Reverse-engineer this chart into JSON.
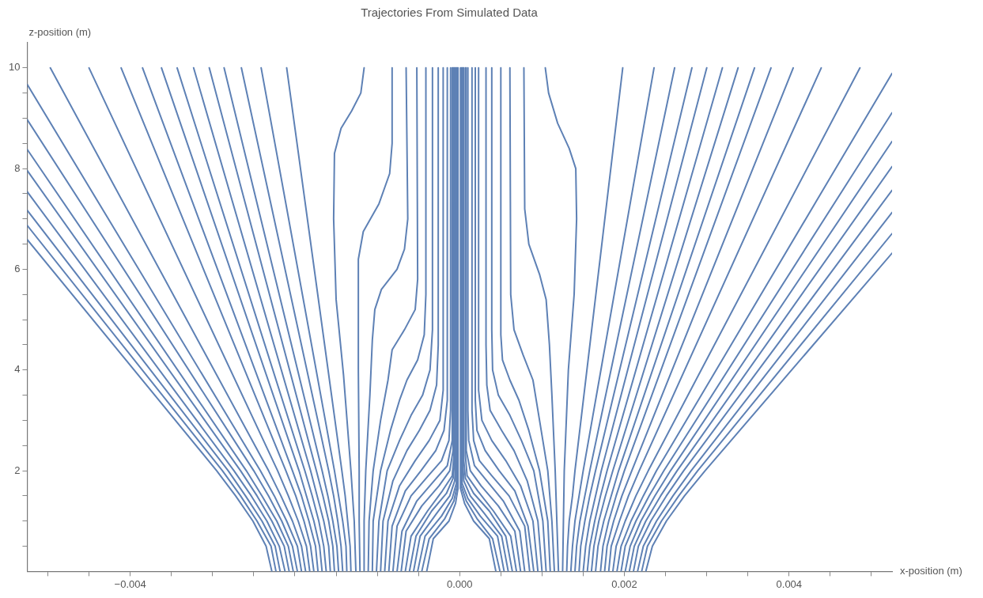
{
  "chart_data": {
    "type": "line",
    "title": "Trajectories From Simulated Data",
    "xlabel": "x-position (m)",
    "ylabel": "z-position (m)",
    "xlim": [
      -0.00525,
      0.00525
    ],
    "ylim": [
      0,
      10.5
    ],
    "xticks": [
      {
        "value": -0.005,
        "label": null
      },
      {
        "value": -0.0045,
        "label": null
      },
      {
        "value": -0.004,
        "label": "−0.004"
      },
      {
        "value": -0.0035,
        "label": null
      },
      {
        "value": -0.003,
        "label": null
      },
      {
        "value": -0.0025,
        "label": null
      },
      {
        "value": -0.002,
        "label": null
      },
      {
        "value": -0.0015,
        "label": null
      },
      {
        "value": -0.001,
        "label": null
      },
      {
        "value": -0.0005,
        "label": null
      },
      {
        "value": 0,
        "label": "0.000"
      },
      {
        "value": 0.0005,
        "label": null
      },
      {
        "value": 0.001,
        "label": null
      },
      {
        "value": 0.0015,
        "label": null
      },
      {
        "value": 0.002,
        "label": "0.002"
      },
      {
        "value": 0.0025,
        "label": null
      },
      {
        "value": 0.003,
        "label": null
      },
      {
        "value": 0.0035,
        "label": null
      },
      {
        "value": 0.004,
        "label": "0.004"
      },
      {
        "value": 0.0045,
        "label": null
      },
      {
        "value": 0.005,
        "label": null
      }
    ],
    "yticks": [
      {
        "value": 0.5,
        "label": null
      },
      {
        "value": 1,
        "label": null
      },
      {
        "value": 1.5,
        "label": null
      },
      2,
      {
        "value": 2.5,
        "label": null
      },
      {
        "value": 3,
        "label": null
      },
      {
        "value": 3.5,
        "label": null
      },
      4,
      {
        "value": 4.5,
        "label": null
      },
      {
        "value": 5,
        "label": null
      },
      {
        "value": 5.5,
        "label": null
      },
      6,
      {
        "value": 6.5,
        "label": null
      },
      {
        "value": 7,
        "label": null
      },
      {
        "value": 7.5,
        "label": null
      },
      8,
      {
        "value": 8.5,
        "label": null
      },
      {
        "value": 9,
        "label": null
      },
      {
        "value": 9.5,
        "label": null
      },
      10
    ],
    "grid": false,
    "legend": false,
    "marker": "none",
    "line_style": "solid",
    "series": [
      {
        "color": "#5e81b5",
        "x": [
          -0.00228,
          -0.00235,
          -0.00251,
          -0.00272,
          -0.00295,
          -0.00525
        ],
        "values": [
          0,
          0.5,
          1,
          1.5,
          2,
          6.59
        ]
      },
      {
        "color": "#5e81b5",
        "x": [
          -0.00223,
          -0.00229,
          -0.00246,
          -0.00266,
          -0.00288,
          -0.00525
        ],
        "values": [
          0,
          0.5,
          1,
          1.5,
          2,
          6.87
        ]
      },
      {
        "color": "#5e81b5",
        "x": [
          -0.00218,
          -0.00224,
          -0.0024,
          -0.0026,
          -0.00281,
          -0.00525
        ],
        "values": [
          0,
          0.5,
          1,
          1.5,
          2,
          7.17
        ]
      },
      {
        "color": "#5e81b5",
        "x": [
          -0.00212,
          -0.00219,
          -0.00234,
          -0.00253,
          -0.00274,
          -0.00525
        ],
        "values": [
          0,
          0.5,
          1,
          1.5,
          2,
          7.54
        ]
      },
      {
        "color": "#5e81b5",
        "x": [
          -0.00207,
          -0.00213,
          -0.00228,
          -0.00246,
          -0.00266,
          -0.00525
        ],
        "values": [
          0,
          0.5,
          1,
          1.5,
          2,
          7.96
        ]
      },
      {
        "color": "#5e81b5",
        "x": [
          -0.00202,
          -0.00208,
          -0.00222,
          -0.0024,
          -0.00259,
          -0.00525
        ],
        "values": [
          0,
          0.5,
          1,
          1.5,
          2,
          8.38
        ]
      },
      {
        "color": "#5e81b5",
        "x": [
          -0.00197,
          -0.00203,
          -0.00216,
          -0.00232,
          -0.0025,
          -0.00525
        ],
        "values": [
          0,
          0.5,
          1,
          1.5,
          2,
          8.97
        ]
      },
      {
        "color": "#5e81b5",
        "x": [
          -0.00192,
          -0.00197,
          -0.0021,
          -0.00225,
          -0.00242,
          -0.00525
        ],
        "values": [
          0,
          0.5,
          1,
          1.5,
          2,
          9.67
        ]
      },
      {
        "color": "#5e81b5",
        "x": [
          -0.00187,
          -0.00192,
          -0.00203,
          -0.00217,
          -0.00232,
          -0.00497
        ],
        "values": [
          0,
          0.5,
          1,
          1.5,
          2,
          10
        ]
      },
      {
        "color": "#5e81b5",
        "x": [
          -0.00182,
          -0.00186,
          -0.00196,
          -0.00208,
          -0.00221,
          -0.0045
        ],
        "values": [
          0,
          0.5,
          1,
          1.5,
          2,
          10
        ]
      },
      {
        "color": "#5e81b5",
        "x": [
          -0.00177,
          -0.00181,
          -0.00189,
          -0.00199,
          -0.00211,
          -0.00411
        ],
        "values": [
          0,
          0.5,
          1,
          1.5,
          2,
          10
        ]
      },
      {
        "color": "#5e81b5",
        "x": [
          -0.00172,
          -0.00175,
          -0.00183,
          -0.00192,
          -0.00203,
          -0.00385
        ],
        "values": [
          0,
          0.5,
          1,
          1.5,
          2,
          10
        ]
      },
      {
        "color": "#5e81b5",
        "x": [
          -0.00167,
          -0.0017,
          -0.00177,
          -0.00186,
          -0.00195,
          -0.00362
        ],
        "values": [
          0,
          0.5,
          1,
          1.5,
          2,
          10
        ]
      },
      {
        "color": "#5e81b5",
        "x": [
          -0.00162,
          -0.00165,
          -0.00171,
          -0.00179,
          -0.00188,
          -0.00343
        ],
        "values": [
          0,
          0.5,
          1,
          1.5,
          2,
          10
        ]
      },
      {
        "color": "#5e81b5",
        "x": [
          -0.00157,
          -0.00159,
          -0.00165,
          -0.00173,
          -0.00181,
          -0.00323
        ],
        "values": [
          0,
          0.5,
          1,
          1.5,
          2,
          10
        ]
      },
      {
        "color": "#5e81b5",
        "x": [
          -0.00152,
          -0.00154,
          -0.00159,
          -0.00166,
          -0.00174,
          -0.00304
        ],
        "values": [
          0,
          0.5,
          1,
          1.5,
          2,
          10
        ]
      },
      {
        "color": "#5e81b5",
        "x": [
          -0.00147,
          -0.00149,
          -0.00154,
          -0.0016,
          -0.00167,
          -0.00286
        ],
        "values": [
          0,
          0.5,
          1,
          1.5,
          2,
          10
        ]
      },
      {
        "color": "#5e81b5",
        "x": [
          -0.00142,
          -0.00144,
          -0.00148,
          -0.00153,
          -0.00159,
          -0.00265
        ],
        "values": [
          0,
          0.5,
          1,
          1.5,
          2,
          10
        ]
      },
      {
        "color": "#5e81b5",
        "x": [
          -0.00137,
          -0.00138,
          -0.00142,
          -0.00147,
          -0.00152,
          -0.00241
        ],
        "values": [
          0,
          0.5,
          1,
          1.5,
          2,
          10
        ]
      },
      {
        "color": "#5e81b5",
        "x": [
          -0.00132,
          -0.00133,
          -0.00136,
          -0.00139,
          -0.00143,
          -0.0021
        ],
        "values": [
          0,
          0.5,
          1,
          1.5,
          2,
          10
        ]
      },
      {
        "color": "#5e81b5",
        "x": [
          -0.00126,
          -0.00128,
          -0.00132,
          -0.00141,
          -0.0015,
          -0.00153,
          -0.00152,
          -0.00144,
          -0.00131,
          -0.0012,
          -0.00116
        ],
        "values": [
          0,
          1,
          2,
          3.9,
          5.4,
          7,
          8.3,
          8.8,
          9.15,
          9.5,
          10
        ]
      },
      {
        "color": "#5e81b5",
        "x": [
          -0.00121,
          -0.00122,
          -0.00122,
          -0.00123,
          -0.00123,
          -0.00117,
          -0.00098,
          -0.00085,
          -0.00082,
          -0.00082
        ],
        "values": [
          0,
          1,
          2,
          4,
          6.2,
          6.75,
          7.3,
          7.9,
          8.5,
          10
        ]
      },
      {
        "color": "#5e81b5",
        "x": [
          -0.00116,
          -0.00116,
          -0.00114,
          -0.00109,
          -0.00106,
          -0.00103,
          -0.00095,
          -0.00076,
          -0.00067,
          -0.00063,
          -0.00065
        ],
        "values": [
          0,
          1,
          2,
          3.5,
          4.6,
          5.2,
          5.6,
          6,
          6.4,
          7,
          10
        ]
      },
      {
        "color": "#5e81b5",
        "x": [
          -0.00111,
          -0.0011,
          -0.00105,
          -0.00096,
          -0.00087,
          -0.00082,
          -0.00067,
          -0.00054,
          -0.00051,
          -0.00052
        ],
        "values": [
          0,
          1,
          2,
          3,
          3.8,
          4.4,
          4.8,
          5.2,
          5.8,
          10
        ]
      },
      {
        "color": "#5e81b5",
        "x": [
          -0.00106,
          -0.00105,
          -0.00096,
          -0.00084,
          -0.00073,
          -0.00064,
          -0.00051,
          -0.00043,
          -0.00041,
          -0.00041
        ],
        "values": [
          0,
          1,
          2,
          2.8,
          3.4,
          3.8,
          4.2,
          4.7,
          5.5,
          10
        ]
      },
      {
        "color": "#5e81b5",
        "x": [
          -0.00101,
          -0.00098,
          -0.00088,
          -0.00073,
          -0.00059,
          -0.00045,
          -0.00036,
          -0.00033,
          -0.00033
        ],
        "values": [
          0,
          1,
          2,
          2.6,
          3.1,
          3.5,
          4,
          4.8,
          10
        ]
      },
      {
        "color": "#5e81b5",
        "x": [
          -0.00096,
          -0.00093,
          -0.00081,
          -0.00064,
          -0.00049,
          -0.00036,
          -0.00028,
          -0.00026,
          -0.00026
        ],
        "values": [
          0,
          1,
          1.8,
          2.4,
          2.8,
          3.2,
          3.7,
          4.5,
          10
        ]
      },
      {
        "color": "#5e81b5",
        "x": [
          -0.00091,
          -0.00087,
          -0.00073,
          -0.00054,
          -0.00037,
          -0.00024,
          -0.0002,
          -0.0002
        ],
        "values": [
          0,
          1,
          1.7,
          2.2,
          2.6,
          3,
          3.6,
          10
        ]
      },
      {
        "color": "#5e81b5",
        "x": [
          -0.00086,
          -0.00082,
          -0.00066,
          -0.00047,
          -0.00029,
          -0.00019,
          -0.00015,
          -0.00015
        ],
        "values": [
          0,
          0.9,
          1.6,
          2,
          2.4,
          2.8,
          3.4,
          10
        ]
      },
      {
        "color": "#5e81b5",
        "x": [
          -0.00081,
          -0.00076,
          -0.00059,
          -0.00038,
          -0.00022,
          -0.00013,
          -0.00011,
          -0.00011
        ],
        "values": [
          0,
          0.9,
          1.5,
          1.9,
          2.2,
          2.6,
          3.2,
          10
        ]
      },
      {
        "color": "#5e81b5",
        "x": [
          -0.00076,
          -0.0007,
          -0.00052,
          -0.00031,
          -0.00015,
          -9e-05,
          -9e-05
        ],
        "values": [
          0,
          0.8,
          1.4,
          1.8,
          2.1,
          2.6,
          10
        ]
      },
      {
        "color": "#5e81b5",
        "x": [
          -0.00071,
          -0.00065,
          -0.00046,
          -0.00025,
          -0.00012,
          -8e-05,
          -8e-05
        ],
        "values": [
          0,
          0.8,
          1.3,
          1.7,
          2,
          2.4,
          10
        ]
      },
      {
        "color": "#5e81b5",
        "x": [
          -0.00066,
          -0.00059,
          -0.00039,
          -0.00021,
          -9e-05,
          -7e-05,
          -7e-05
        ],
        "values": [
          0,
          0.7,
          1.2,
          1.6,
          1.9,
          2.3,
          10
        ]
      },
      {
        "color": "#5e81b5",
        "x": [
          -0.00061,
          -0.00053,
          -0.00034,
          -0.00016,
          -8e-05,
          -6e-05,
          -6e-05
        ],
        "values": [
          0,
          0.7,
          1.2,
          1.55,
          1.85,
          2.2,
          10
        ]
      },
      {
        "color": "#5e81b5",
        "x": [
          -0.00056,
          -0.00048,
          -0.00028,
          -0.00012,
          -6e-05,
          -5e-05,
          -5e-05
        ],
        "values": [
          0,
          0.7,
          1.15,
          1.5,
          1.8,
          2.1,
          10
        ]
      },
      {
        "color": "#5e81b5",
        "x": [
          -0.00051,
          -0.00042,
          -0.00022,
          -9e-05,
          -4e-05,
          -4e-05
        ],
        "values": [
          0,
          0.7,
          1.1,
          1.45,
          1.75,
          10
        ]
      },
      {
        "color": "#5e81b5",
        "x": [
          -0.00046,
          -0.00037,
          -0.00018,
          -7e-05,
          -3e-05,
          -3e-05
        ],
        "values": [
          0,
          0.65,
          1.05,
          1.4,
          1.7,
          10
        ]
      },
      {
        "color": "#5e81b5",
        "x": [
          -0.0004,
          -0.00032,
          -0.00013,
          -5e-05,
          -2e-05,
          -2e-05
        ],
        "values": [
          0,
          0.65,
          1,
          1.35,
          1.65,
          10
        ]
      },
      {
        "color": "#5e81b5",
        "x": [
          0.00044,
          0.00036,
          0.00017,
          6e-05,
          1e-05,
          1e-05
        ],
        "values": [
          0,
          0.65,
          1,
          1.35,
          1.65,
          10
        ]
      },
      {
        "color": "#5e81b5",
        "x": [
          0.00049,
          0.0004,
          0.00021,
          8e-05,
          2e-05,
          2e-05
        ],
        "values": [
          0,
          0.65,
          1.05,
          1.4,
          1.7,
          10
        ]
      },
      {
        "color": "#5e81b5",
        "x": [
          0.00054,
          0.00046,
          0.00025,
          0.0001,
          3e-05,
          3e-05
        ],
        "values": [
          0,
          0.7,
          1.1,
          1.45,
          1.75,
          10
        ]
      },
      {
        "color": "#5e81b5",
        "x": [
          0.00059,
          0.00051,
          0.0003,
          0.00013,
          5e-05,
          4e-05,
          4e-05
        ],
        "values": [
          0,
          0.7,
          1.15,
          1.5,
          1.8,
          2.1,
          10
        ]
      },
      {
        "color": "#5e81b5",
        "x": [
          0.00064,
          0.00056,
          0.00036,
          0.00017,
          7e-05,
          5e-05,
          5e-05
        ],
        "values": [
          0,
          0.7,
          1.2,
          1.55,
          1.85,
          2.2,
          10
        ]
      },
      {
        "color": "#5e81b5",
        "x": [
          0.00069,
          0.00062,
          0.00041,
          0.00022,
          9e-05,
          7e-05,
          7e-05
        ],
        "values": [
          0,
          0.7,
          1.2,
          1.6,
          1.9,
          2.3,
          10
        ]
      },
      {
        "color": "#5e81b5",
        "x": [
          0.00074,
          0.00067,
          0.00047,
          0.00026,
          0.00013,
          8e-05,
          8e-05
        ],
        "values": [
          0,
          0.8,
          1.3,
          1.7,
          2,
          2.4,
          10
        ]
      },
      {
        "color": "#5e81b5",
        "x": [
          0.00079,
          0.00073,
          0.00053,
          0.00033,
          0.00018,
          0.00011,
          0.0001,
          0.0001
        ],
        "values": [
          0,
          0.8,
          1.4,
          1.8,
          2.1,
          2.6,
          3.2,
          10
        ]
      },
      {
        "color": "#5e81b5",
        "x": [
          0.00085,
          0.00079,
          0.0006,
          0.00039,
          0.00024,
          0.00017,
          0.00015,
          0.00015
        ],
        "values": [
          0,
          0.9,
          1.5,
          1.9,
          2.2,
          2.6,
          3.2,
          10
        ]
      },
      {
        "color": "#5e81b5",
        "x": [
          0.0009,
          0.00083,
          0.00067,
          0.00048,
          0.00031,
          0.00021,
          0.00019,
          0.00019
        ],
        "values": [
          0,
          0.9,
          1.6,
          2,
          2.4,
          2.8,
          3.4,
          10
        ]
      },
      {
        "color": "#5e81b5",
        "x": [
          0.00095,
          0.00089,
          0.00074,
          0.00056,
          0.00039,
          0.00027,
          0.00023,
          0.00023
        ],
        "values": [
          0,
          1,
          1.7,
          2.2,
          2.6,
          3,
          3.6,
          10
        ]
      },
      {
        "color": "#5e81b5",
        "x": [
          0.001,
          0.00095,
          0.00082,
          0.00066,
          0.00051,
          0.00037,
          0.00033,
          0.00032,
          0.00032
        ],
        "values": [
          0,
          1,
          1.8,
          2.4,
          2.8,
          3.2,
          3.7,
          4.5,
          10
        ]
      },
      {
        "color": "#5e81b5",
        "x": [
          0.00105,
          0.00101,
          0.0009,
          0.00075,
          0.00061,
          0.00047,
          0.0004,
          0.00039,
          0.00039
        ],
        "values": [
          0,
          1,
          2,
          2.6,
          3.1,
          3.5,
          4,
          4.8,
          10
        ]
      },
      {
        "color": "#5e81b5",
        "x": [
          0.0011,
          0.00107,
          0.00097,
          0.00084,
          0.00072,
          0.00061,
          0.00052,
          0.0005,
          0.0005
        ],
        "values": [
          0,
          1,
          2,
          2.8,
          3.4,
          3.8,
          4.2,
          4.7,
          10
        ]
      },
      {
        "color": "#5e81b5",
        "x": [
          0.00115,
          0.00112,
          0.00107,
          0.00097,
          0.00089,
          0.00077,
          0.00066,
          0.00062,
          0.00061
        ],
        "values": [
          0,
          1,
          2,
          3,
          3.8,
          4.3,
          4.8,
          5.5,
          10
        ]
      },
      {
        "color": "#5e81b5",
        "x": [
          0.0012,
          0.00118,
          0.00116,
          0.00112,
          0.00109,
          0.00105,
          0.00097,
          0.00084,
          0.00079,
          0.00078
        ],
        "values": [
          0,
          1,
          2,
          3.5,
          4.5,
          5.4,
          5.9,
          6.5,
          7.2,
          10
        ]
      },
      {
        "color": "#5e81b5",
        "x": [
          0.00125,
          0.00126,
          0.00127,
          0.00132,
          0.00139,
          0.00142,
          0.00141,
          0.00133,
          0.00119,
          0.00108,
          0.00104
        ],
        "values": [
          0,
          1,
          2,
          4,
          5.5,
          7,
          8,
          8.4,
          8.9,
          9.5,
          10
        ]
      },
      {
        "color": "#5e81b5",
        "x": [
          0.0013,
          0.00131,
          0.00133,
          0.00137,
          0.0014,
          0.00198
        ],
        "values": [
          0,
          0.5,
          1,
          1.5,
          2,
          10
        ]
      },
      {
        "color": "#5e81b5",
        "x": [
          0.00135,
          0.00137,
          0.0014,
          0.00145,
          0.0015,
          0.00236
        ],
        "values": [
          0,
          0.5,
          1,
          1.5,
          2,
          10
        ]
      },
      {
        "color": "#5e81b5",
        "x": [
          0.0014,
          0.00142,
          0.00146,
          0.00152,
          0.00158,
          0.00261
        ],
        "values": [
          0,
          0.5,
          1,
          1.5,
          2,
          10
        ]
      },
      {
        "color": "#5e81b5",
        "x": [
          0.00145,
          0.00147,
          0.00152,
          0.00158,
          0.00165,
          0.00282
        ],
        "values": [
          0,
          0.5,
          1,
          1.5,
          2,
          10
        ]
      },
      {
        "color": "#5e81b5",
        "x": [
          0.0015,
          0.00153,
          0.00158,
          0.00165,
          0.00172,
          0.003
        ],
        "values": [
          0,
          0.5,
          1,
          1.5,
          2,
          10
        ]
      },
      {
        "color": "#5e81b5",
        "x": [
          0.00155,
          0.00158,
          0.00164,
          0.00171,
          0.00179,
          0.00319
        ],
        "values": [
          0,
          0.5,
          1,
          1.5,
          2,
          10
        ]
      },
      {
        "color": "#5e81b5",
        "x": [
          0.0016,
          0.00163,
          0.00169,
          0.00177,
          0.00186,
          0.00338
        ],
        "values": [
          0,
          0.5,
          1,
          1.5,
          2,
          10
        ]
      },
      {
        "color": "#5e81b5",
        "x": [
          0.00165,
          0.00168,
          0.00175,
          0.00184,
          0.00193,
          0.00358
        ],
        "values": [
          0,
          0.5,
          1,
          1.5,
          2,
          10
        ]
      },
      {
        "color": "#5e81b5",
        "x": [
          0.00171,
          0.00174,
          0.00181,
          0.0019,
          0.002,
          0.00378
        ],
        "values": [
          0,
          0.5,
          1,
          1.5,
          2,
          10
        ]
      },
      {
        "color": "#5e81b5",
        "x": [
          0.00176,
          0.00179,
          0.00187,
          0.00197,
          0.00209,
          0.00405
        ],
        "values": [
          0,
          0.5,
          1,
          1.5,
          2,
          10
        ]
      },
      {
        "color": "#5e81b5",
        "x": [
          0.00181,
          0.00184,
          0.00194,
          0.00205,
          0.00218,
          0.00439
        ],
        "values": [
          0,
          0.5,
          1,
          1.5,
          2,
          10
        ]
      },
      {
        "color": "#5e81b5",
        "x": [
          0.00186,
          0.0019,
          0.00201,
          0.00214,
          0.00229,
          0.00486
        ],
        "values": [
          0,
          0.5,
          1,
          1.5,
          2,
          10
        ]
      },
      {
        "color": "#5e81b5",
        "x": [
          0.00191,
          0.00196,
          0.00208,
          0.00223,
          0.00239,
          0.00525
        ],
        "values": [
          0,
          0.5,
          1,
          1.5,
          2,
          9.89
        ]
      },
      {
        "color": "#5e81b5",
        "x": [
          0.00196,
          0.00201,
          0.00214,
          0.0023,
          0.00248,
          0.00525
        ],
        "values": [
          0,
          0.5,
          1,
          1.5,
          2,
          9.11
        ]
      },
      {
        "color": "#5e81b5",
        "x": [
          0.00201,
          0.00207,
          0.0022,
          0.00237,
          0.00256,
          0.00525
        ],
        "values": [
          0,
          0.5,
          1,
          1.5,
          2,
          8.54
        ]
      },
      {
        "color": "#5e81b5",
        "x": [
          0.00206,
          0.00212,
          0.00226,
          0.00244,
          0.00264,
          0.00525
        ],
        "values": [
          0,
          0.5,
          1,
          1.5,
          2,
          8.04
        ]
      },
      {
        "color": "#5e81b5",
        "x": [
          0.00211,
          0.00217,
          0.00232,
          0.00251,
          0.00272,
          0.00525
        ],
        "values": [
          0,
          0.5,
          1,
          1.5,
          2,
          7.57
        ]
      },
      {
        "color": "#5e81b5",
        "x": [
          0.00216,
          0.00223,
          0.00239,
          0.00259,
          0.00281,
          0.00525
        ],
        "values": [
          0,
          0.5,
          1,
          1.5,
          2,
          7.13
        ]
      },
      {
        "color": "#5e81b5",
        "x": [
          0.00221,
          0.00228,
          0.00245,
          0.00266,
          0.00289,
          0.00525
        ],
        "values": [
          0,
          0.5,
          1,
          1.5,
          2,
          6.71
        ]
      },
      {
        "color": "#5e81b5",
        "x": [
          0.00226,
          0.00234,
          0.00251,
          0.00273,
          0.00298,
          0.00525
        ],
        "values": [
          0,
          0.5,
          1,
          1.5,
          2,
          6.32
        ]
      }
    ]
  }
}
